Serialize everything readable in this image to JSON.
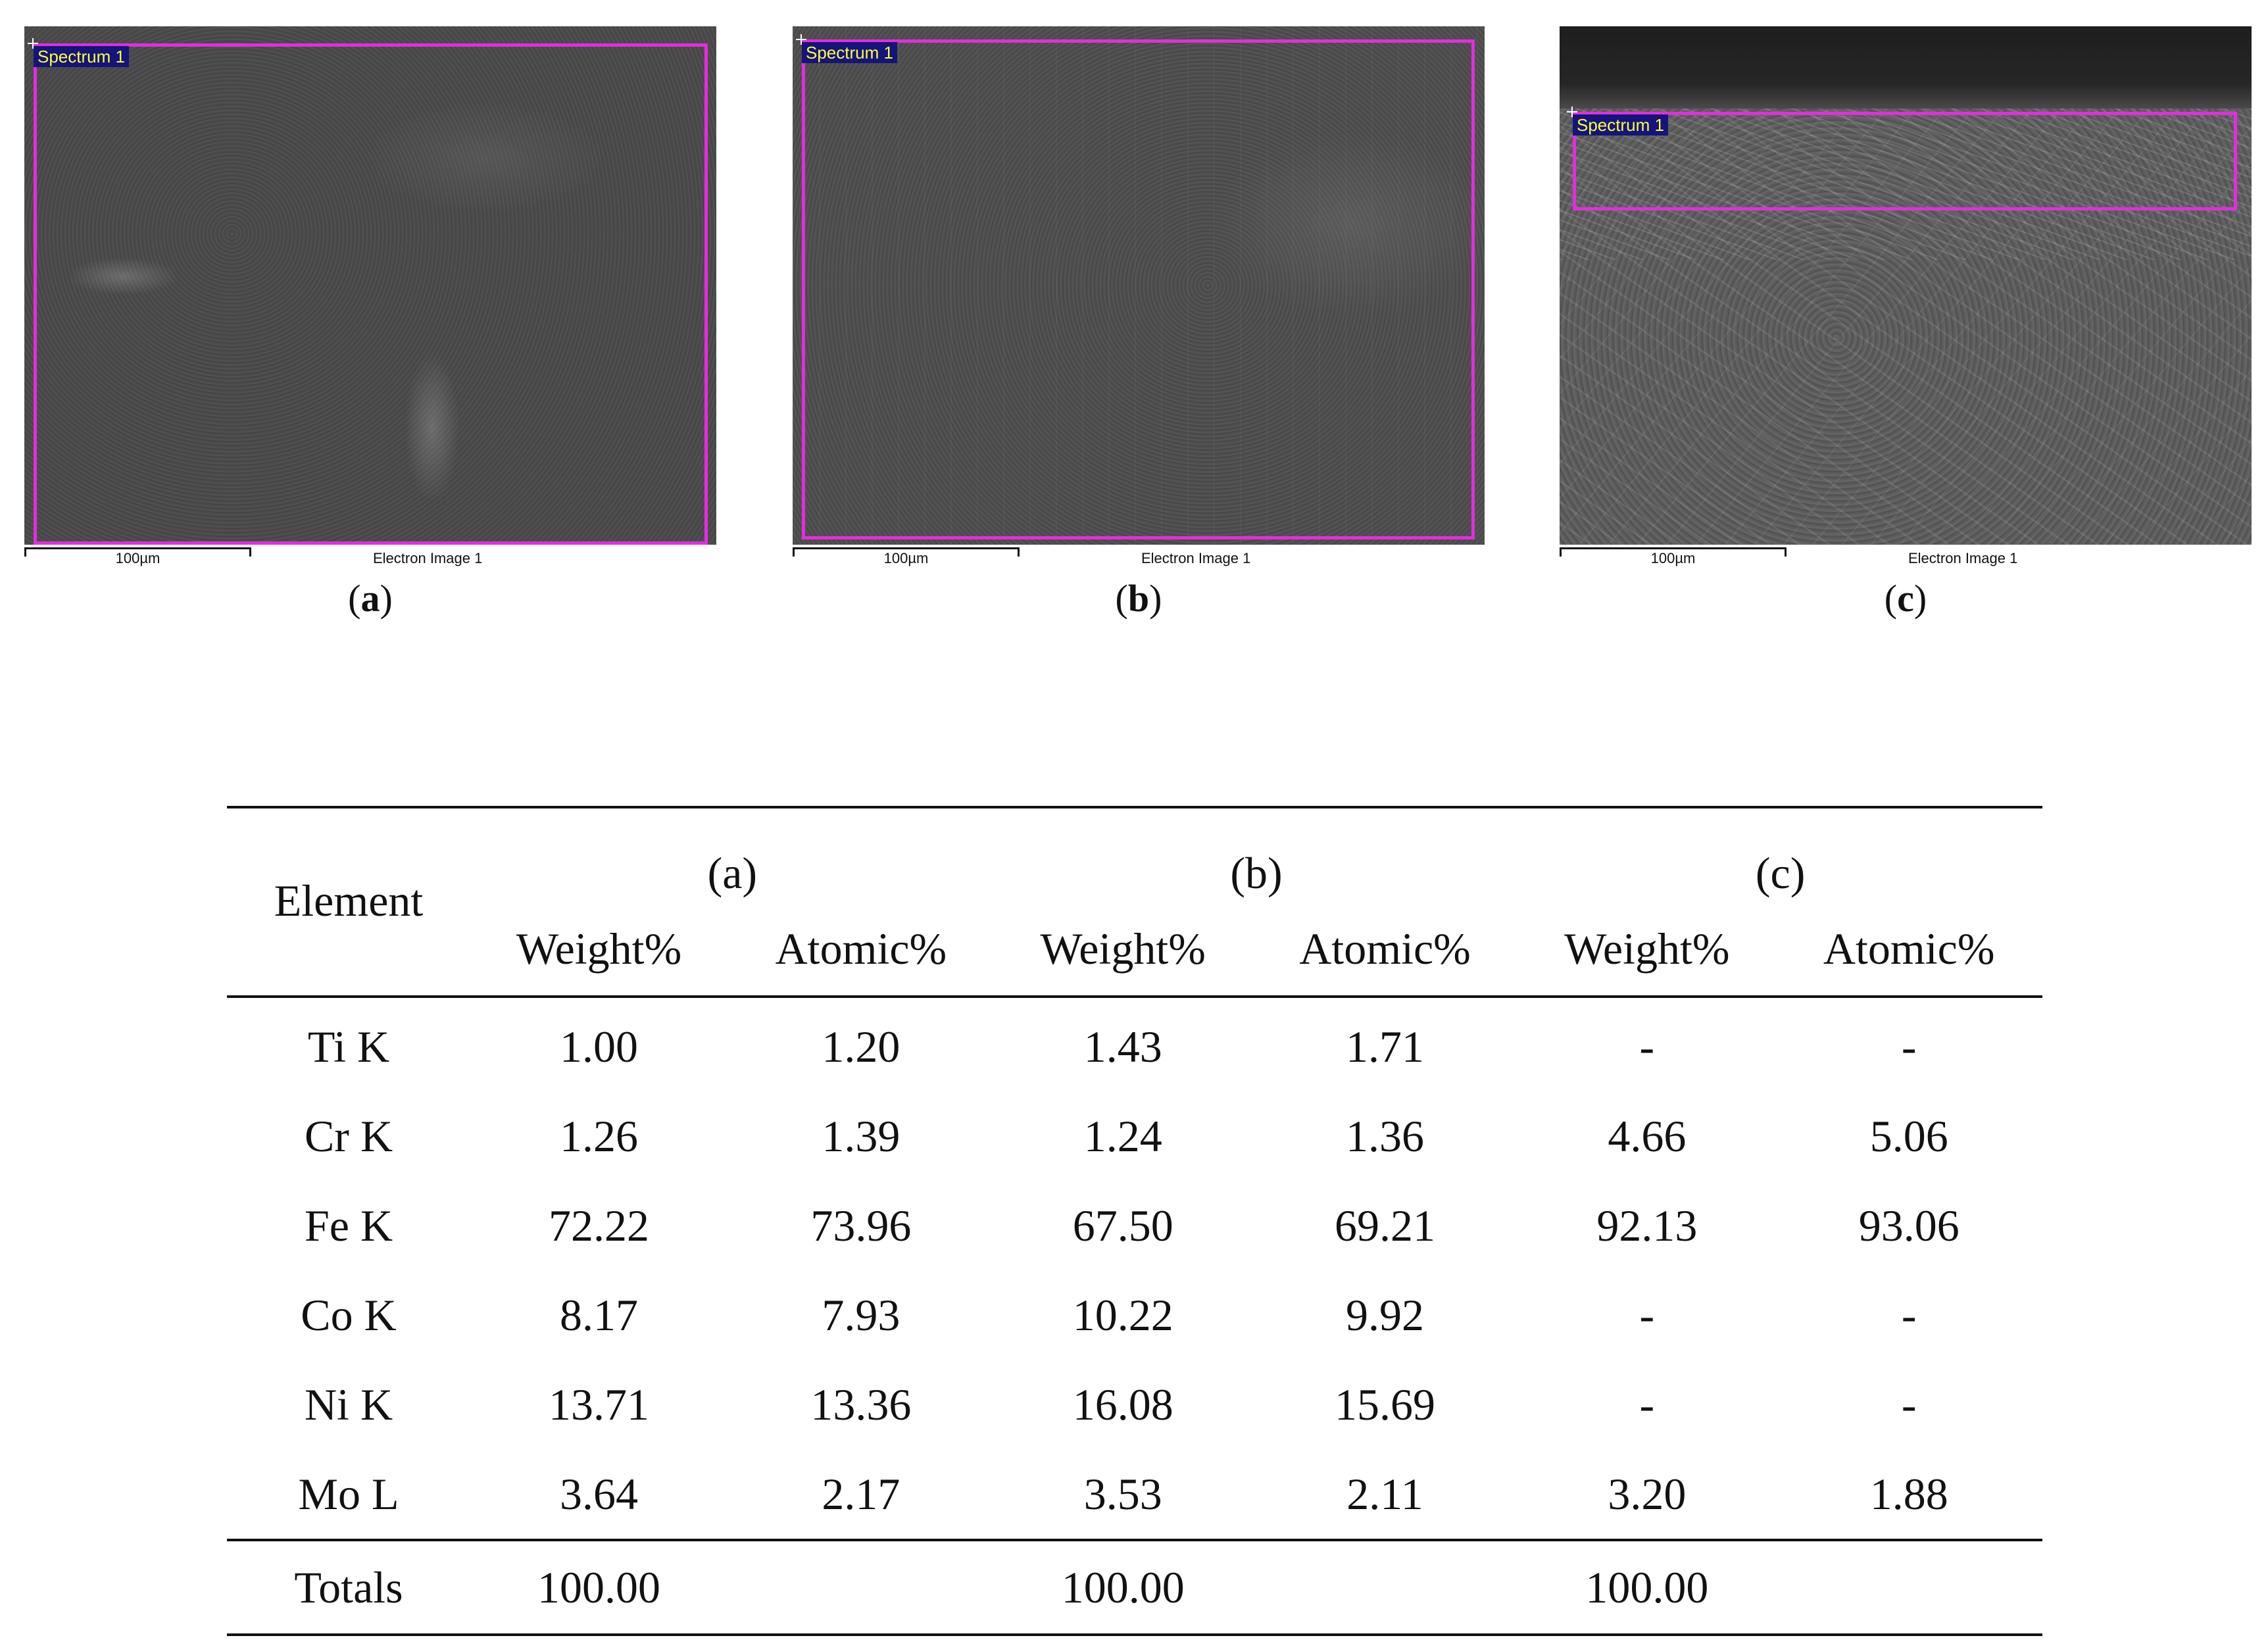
{
  "figure": {
    "panels": [
      {
        "id": "a",
        "spectrum_label": "Spectrum 1",
        "scale_label": "100µm",
        "image_label": "Electron Image 1",
        "caption": "a"
      },
      {
        "id": "b",
        "spectrum_label": "Spectrum 1",
        "scale_label": "100µm",
        "image_label": "Electron Image 1",
        "caption": "b"
      },
      {
        "id": "c",
        "spectrum_label": "Spectrum 1",
        "scale_label": "100µm",
        "image_label": "Electron Image 1",
        "caption": "c"
      }
    ],
    "roi_color": "#e62be3",
    "label_bg": "#14147a",
    "label_fg": "#ffff3a"
  },
  "table": {
    "element_header": "Element",
    "groups": [
      "(a)",
      "(b)",
      "(c)"
    ],
    "subheaders": [
      "Weight%",
      "Atomic%",
      "Weight%",
      "Atomic%",
      "Weight%",
      "Atomic%"
    ],
    "rows": [
      {
        "element": "Ti K",
        "values": [
          "1.00",
          "1.20",
          "1.43",
          "1.71",
          "-",
          "-"
        ]
      },
      {
        "element": "Cr K",
        "values": [
          "1.26",
          "1.39",
          "1.24",
          "1.36",
          "4.66",
          "5.06"
        ]
      },
      {
        "element": "Fe K",
        "values": [
          "72.22",
          "73.96",
          "67.50",
          "69.21",
          "92.13",
          "93.06"
        ]
      },
      {
        "element": "Co K",
        "values": [
          "8.17",
          "7.93",
          "10.22",
          "9.92",
          "-",
          "-"
        ]
      },
      {
        "element": "Ni K",
        "values": [
          "13.71",
          "13.36",
          "16.08",
          "15.69",
          "-",
          "-"
        ]
      },
      {
        "element": "Mo L",
        "values": [
          "3.64",
          "2.17",
          "3.53",
          "2.11",
          "3.20",
          "1.88"
        ]
      }
    ],
    "totals": {
      "label": "Totals",
      "values": [
        "100.00",
        "",
        "100.00",
        "",
        "100.00",
        ""
      ]
    }
  }
}
